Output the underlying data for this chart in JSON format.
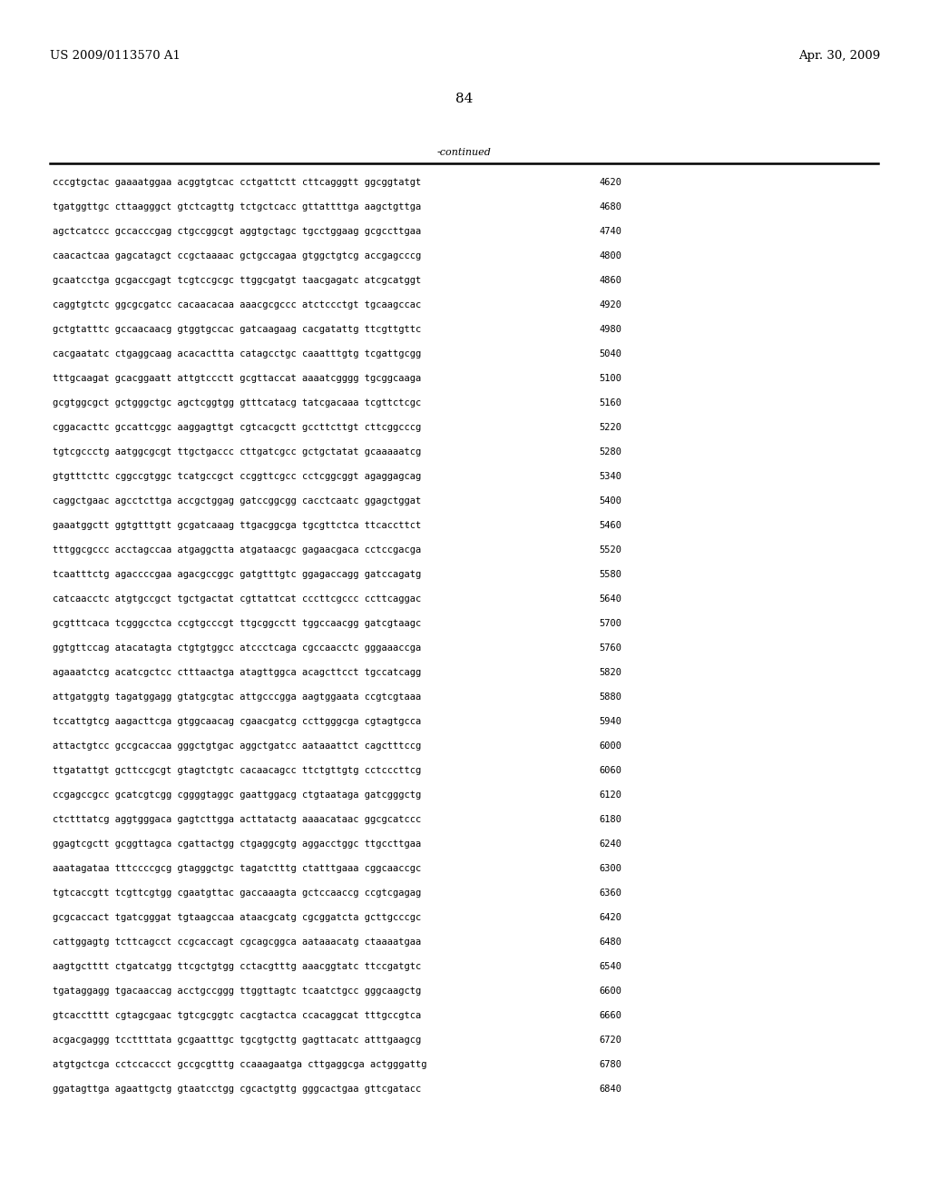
{
  "header_left": "US 2009/0113570 A1",
  "header_right": "Apr. 30, 2009",
  "page_number": "84",
  "continued_label": "-continued",
  "bg_color": "#ffffff",
  "text_color": "#000000",
  "seq_font_size": 7.5,
  "header_font_size": 9.5,
  "page_num_font_size": 11,
  "sequence_lines": [
    [
      "cccgtgctac gaaaatggaa acggtgtcac cctgattctt cttcagggtt ggcggtatgt",
      "4620"
    ],
    [
      "tgatggttgc cttaagggct gtctcagttg tctgctcacc gttattttga aagctgttga",
      "4680"
    ],
    [
      "agctcatccc gccacccgag ctgccggcgt aggtgctagc tgcctggaag gcgccttgaa",
      "4740"
    ],
    [
      "caacactcaa gagcatagct ccgctaaaac gctgccagaa gtggctgtcg accgagcccg",
      "4800"
    ],
    [
      "gcaatcctga gcgaccgagt tcgtccgcgc ttggcgatgt taacgagatc atcgcatggt",
      "4860"
    ],
    [
      "caggtgtctc ggcgcgatcc cacaacacaa aaacgcgccc atctccctgt tgcaagccac",
      "4920"
    ],
    [
      "gctgtatttc gccaacaacg gtggtgccac gatcaagaag cacgatattg ttcgttgttc",
      "4980"
    ],
    [
      "cacgaatatc ctgaggcaag acacacttta catagcctgc caaatttgtg tcgattgcgg",
      "5040"
    ],
    [
      "tttgcaagat gcacggaatt attgtccctt gcgttaccat aaaatcgggg tgcggcaaga",
      "5100"
    ],
    [
      "gcgtggcgct gctgggctgc agctcggtgg gtttcatacg tatcgacaaa tcgttctcgc",
      "5160"
    ],
    [
      "cggacacttc gccattcggc aaggagttgt cgtcacgctt gccttcttgt cttcggcccg",
      "5220"
    ],
    [
      "tgtcgccctg aatggcgcgt ttgctgaccc cttgatcgcc gctgctatat gcaaaaatcg",
      "5280"
    ],
    [
      "gtgtttcttc cggccgtggc tcatgccgct ccggttcgcc cctcggcggt agaggagcag",
      "5340"
    ],
    [
      "caggctgaac agcctcttga accgctggag gatccggcgg cacctcaatc ggagctggat",
      "5400"
    ],
    [
      "gaaatggctt ggtgtttgtt gcgatcaaag ttgacggcga tgcgttctca ttcaccttct",
      "5460"
    ],
    [
      "tttggcgccc acctagccaa atgaggctta atgataacgc gagaacgaca cctccgacga",
      "5520"
    ],
    [
      "tcaatttctg agaccccgaa agacgccggc gatgtttgtc ggagaccagg gatccagatg",
      "5580"
    ],
    [
      "catcaacctc atgtgccgct tgctgactat cgttattcat cccttcgccc ccttcaggac",
      "5640"
    ],
    [
      "gcgtttcaca tcgggcctca ccgtgcccgt ttgcggcctt tggccaacgg gatcgtaagc",
      "5700"
    ],
    [
      "ggtgttccag atacatagta ctgtgtggcc atccctcaga cgccaacctc gggaaaccga",
      "5760"
    ],
    [
      "agaaatctcg acatcgctcc ctttaactga atagttggca acagcttcct tgccatcagg",
      "5820"
    ],
    [
      "attgatggtg tagatggagg gtatgcgtac attgcccgga aagtggaata ccgtcgtaaa",
      "5880"
    ],
    [
      "tccattgtcg aagacttcga gtggcaacag cgaacgatcg ccttgggcga cgtagtgcca",
      "5940"
    ],
    [
      "attactgtcc gccgcaccaa gggctgtgac aggctgatcc aataaattct cagctttccg",
      "6000"
    ],
    [
      "ttgatattgt gcttccgcgt gtagtctgtc cacaacagcc ttctgttgtg cctcccttcg",
      "6060"
    ],
    [
      "ccgagccgcc gcatcgtcgg cggggtaggc gaattggacg ctgtaataga gatcgggctg",
      "6120"
    ],
    [
      "ctctttatcg aggtgggaca gagtcttgga acttatactg aaaacataac ggcgcatccc",
      "6180"
    ],
    [
      "ggagtcgctt gcggttagca cgattactgg ctgaggcgtg aggacctggc ttgccttgaa",
      "6240"
    ],
    [
      "aaatagataa tttccccgcg gtagggctgc tagatctttg ctatttgaaa cggcaaccgc",
      "6300"
    ],
    [
      "tgtcaccgtt tcgttcgtgg cgaatgttac gaccaaagta gctccaaccg ccgtcgagag",
      "6360"
    ],
    [
      "gcgcaccact tgatcgggat tgtaagccaa ataacgcatg cgcggatcta gcttgcccgc",
      "6420"
    ],
    [
      "cattggagtg tcttcagcct ccgcaccagt cgcagcggca aataaacatg ctaaaatgaa",
      "6480"
    ],
    [
      "aagtgctttt ctgatcatgg ttcgctgtgg cctacgtttg aaacggtatc ttccgatgtc",
      "6540"
    ],
    [
      "tgataggagg tgacaaccag acctgccggg ttggttagtc tcaatctgcc gggcaagctg",
      "6600"
    ],
    [
      "gtcacctttt cgtagcgaac tgtcgcggtc cacgtactca ccacaggcat tttgccgtca",
      "6660"
    ],
    [
      "acgacgaggg tccttttata gcgaatttgc tgcgtgcttg gagttacatc atttgaagcg",
      "6720"
    ],
    [
      "atgtgctcga cctccaccct gccgcgtttg ccaaagaatga cttgaggcga actgggattg",
      "6780"
    ],
    [
      "ggatagttga agaattgctg gtaatcctgg cgcactgttg gggcactgaa gttcgatacc",
      "6840"
    ]
  ]
}
